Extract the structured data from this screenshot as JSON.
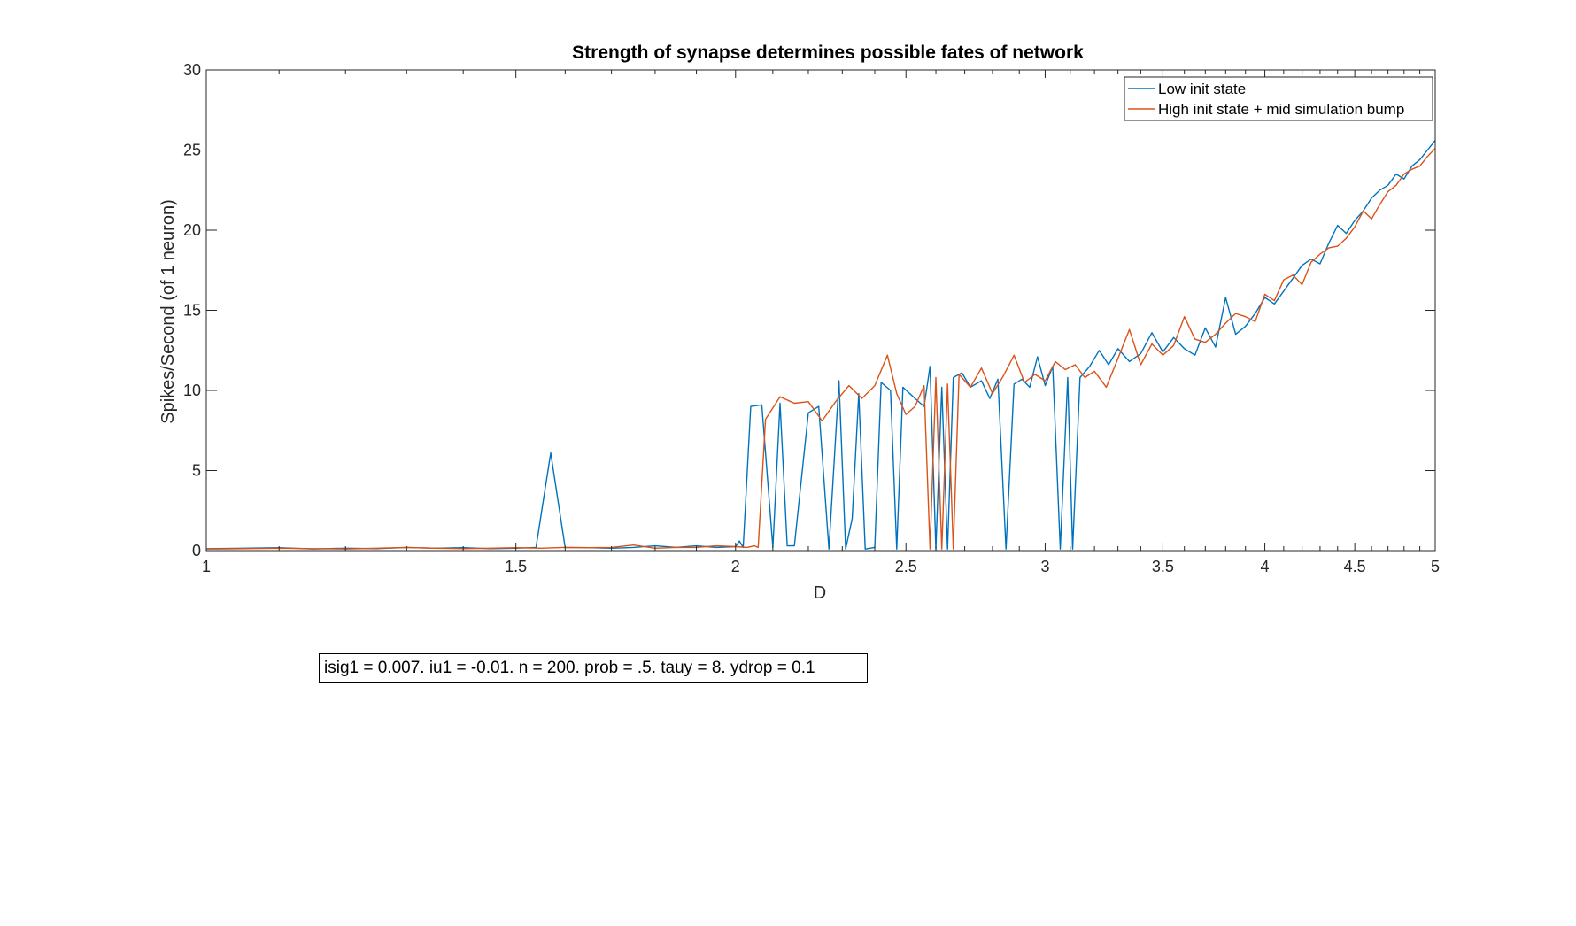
{
  "chart_data": {
    "type": "line",
    "title": "Strength of synapse determines possible fates of network",
    "xlabel": "D",
    "ylabel": "Spikes/Second (of 1 neuron)",
    "xscale": "log",
    "xlim": [
      1,
      5
    ],
    "ylim": [
      0,
      30
    ],
    "xticks": [
      1,
      1.5,
      2,
      2.5,
      3,
      3.5,
      4,
      4.5,
      5
    ],
    "xtick_labels": [
      "1",
      "1.5",
      "2",
      "2.5",
      "3",
      "3.5",
      "4",
      "4.5",
      "5"
    ],
    "yticks": [
      0,
      5,
      10,
      15,
      20,
      25,
      30
    ],
    "ytick_labels": [
      "0",
      "5",
      "10",
      "15",
      "20",
      "25",
      "30"
    ],
    "grid": false,
    "legend_position": "top-right",
    "series": [
      {
        "name": "Low init state",
        "color": "#0072BD",
        "points": [
          [
            1.0,
            0.12
          ],
          [
            1.05,
            0.15
          ],
          [
            1.1,
            0.18
          ],
          [
            1.15,
            0.1
          ],
          [
            1.2,
            0.15
          ],
          [
            1.25,
            0.12
          ],
          [
            1.3,
            0.2
          ],
          [
            1.35,
            0.15
          ],
          [
            1.4,
            0.18
          ],
          [
            1.45,
            0.12
          ],
          [
            1.5,
            0.15
          ],
          [
            1.54,
            0.2
          ],
          [
            1.57,
            6.1
          ],
          [
            1.6,
            0.2
          ],
          [
            1.65,
            0.18
          ],
          [
            1.7,
            0.15
          ],
          [
            1.75,
            0.2
          ],
          [
            1.8,
            0.3
          ],
          [
            1.85,
            0.2
          ],
          [
            1.9,
            0.3
          ],
          [
            1.95,
            0.2
          ],
          [
            2.0,
            0.25
          ],
          [
            2.01,
            0.6
          ],
          [
            2.02,
            0.2
          ],
          [
            2.04,
            9.0
          ],
          [
            2.07,
            9.1
          ],
          [
            2.1,
            0.2
          ],
          [
            2.12,
            9.2
          ],
          [
            2.14,
            0.3
          ],
          [
            2.16,
            0.3
          ],
          [
            2.2,
            8.6
          ],
          [
            2.23,
            9.0
          ],
          [
            2.26,
            0.1
          ],
          [
            2.29,
            10.6
          ],
          [
            2.31,
            0.1
          ],
          [
            2.33,
            2.0
          ],
          [
            2.35,
            9.8
          ],
          [
            2.37,
            0.1
          ],
          [
            2.4,
            0.2
          ],
          [
            2.42,
            10.5
          ],
          [
            2.45,
            10.0
          ],
          [
            2.47,
            0.1
          ],
          [
            2.49,
            10.2
          ],
          [
            2.53,
            9.5
          ],
          [
            2.56,
            9.0
          ],
          [
            2.58,
            11.5
          ],
          [
            2.6,
            0.1
          ],
          [
            2.62,
            10.2
          ],
          [
            2.64,
            0.1
          ],
          [
            2.66,
            10.8
          ],
          [
            2.69,
            11.1
          ],
          [
            2.72,
            10.2
          ],
          [
            2.76,
            10.6
          ],
          [
            2.79,
            9.5
          ],
          [
            2.82,
            10.7
          ],
          [
            2.85,
            0.1
          ],
          [
            2.88,
            10.4
          ],
          [
            2.91,
            10.7
          ],
          [
            2.94,
            10.2
          ],
          [
            2.97,
            12.1
          ],
          [
            3.0,
            10.3
          ],
          [
            3.03,
            11.5
          ],
          [
            3.06,
            0.1
          ],
          [
            3.09,
            10.8
          ],
          [
            3.11,
            0.1
          ],
          [
            3.14,
            10.8
          ],
          [
            3.18,
            11.5
          ],
          [
            3.22,
            12.5
          ],
          [
            3.26,
            11.6
          ],
          [
            3.3,
            12.6
          ],
          [
            3.35,
            11.8
          ],
          [
            3.4,
            12.3
          ],
          [
            3.45,
            13.6
          ],
          [
            3.5,
            12.4
          ],
          [
            3.55,
            13.3
          ],
          [
            3.6,
            12.6
          ],
          [
            3.65,
            12.2
          ],
          [
            3.7,
            13.9
          ],
          [
            3.75,
            12.7
          ],
          [
            3.8,
            15.8
          ],
          [
            3.85,
            13.5
          ],
          [
            3.9,
            14.0
          ],
          [
            3.95,
            14.8
          ],
          [
            4.0,
            15.8
          ],
          [
            4.05,
            15.4
          ],
          [
            4.1,
            16.2
          ],
          [
            4.15,
            17.0
          ],
          [
            4.2,
            17.8
          ],
          [
            4.25,
            18.2
          ],
          [
            4.3,
            17.9
          ],
          [
            4.35,
            19.2
          ],
          [
            4.4,
            20.3
          ],
          [
            4.45,
            19.8
          ],
          [
            4.5,
            20.6
          ],
          [
            4.55,
            21.2
          ],
          [
            4.6,
            22.0
          ],
          [
            4.65,
            22.5
          ],
          [
            4.7,
            22.8
          ],
          [
            4.75,
            23.5
          ],
          [
            4.8,
            23.2
          ],
          [
            4.85,
            24.0
          ],
          [
            4.9,
            24.4
          ],
          [
            4.95,
            25.0
          ],
          [
            5.0,
            25.6
          ]
        ]
      },
      {
        "name": "High init state + mid simulation bump",
        "color": "#D95319",
        "points": [
          [
            1.0,
            0.1
          ],
          [
            1.05,
            0.12
          ],
          [
            1.1,
            0.15
          ],
          [
            1.15,
            0.12
          ],
          [
            1.2,
            0.1
          ],
          [
            1.25,
            0.15
          ],
          [
            1.3,
            0.2
          ],
          [
            1.35,
            0.15
          ],
          [
            1.4,
            0.12
          ],
          [
            1.45,
            0.15
          ],
          [
            1.5,
            0.18
          ],
          [
            1.55,
            0.15
          ],
          [
            1.6,
            0.2
          ],
          [
            1.65,
            0.18
          ],
          [
            1.7,
            0.2
          ],
          [
            1.75,
            0.35
          ],
          [
            1.8,
            0.15
          ],
          [
            1.85,
            0.2
          ],
          [
            1.9,
            0.2
          ],
          [
            1.95,
            0.3
          ],
          [
            2.0,
            0.25
          ],
          [
            2.03,
            0.2
          ],
          [
            2.05,
            0.3
          ],
          [
            2.06,
            0.2
          ],
          [
            2.08,
            8.2
          ],
          [
            2.12,
            9.6
          ],
          [
            2.16,
            9.2
          ],
          [
            2.2,
            9.3
          ],
          [
            2.24,
            8.1
          ],
          [
            2.28,
            9.3
          ],
          [
            2.32,
            10.3
          ],
          [
            2.36,
            9.5
          ],
          [
            2.4,
            10.3
          ],
          [
            2.44,
            12.2
          ],
          [
            2.47,
            9.8
          ],
          [
            2.5,
            8.5
          ],
          [
            2.53,
            9.0
          ],
          [
            2.56,
            10.3
          ],
          [
            2.58,
            0.1
          ],
          [
            2.6,
            10.8
          ],
          [
            2.62,
            0.1
          ],
          [
            2.64,
            10.4
          ],
          [
            2.66,
            0.1
          ],
          [
            2.68,
            11.0
          ],
          [
            2.72,
            10.2
          ],
          [
            2.76,
            11.4
          ],
          [
            2.8,
            9.8
          ],
          [
            2.84,
            10.9
          ],
          [
            2.88,
            12.2
          ],
          [
            2.92,
            10.5
          ],
          [
            2.96,
            11.0
          ],
          [
            3.0,
            10.6
          ],
          [
            3.04,
            11.8
          ],
          [
            3.08,
            11.3
          ],
          [
            3.12,
            11.6
          ],
          [
            3.16,
            10.8
          ],
          [
            3.2,
            11.2
          ],
          [
            3.25,
            10.2
          ],
          [
            3.3,
            12.0
          ],
          [
            3.35,
            13.8
          ],
          [
            3.4,
            11.6
          ],
          [
            3.45,
            12.9
          ],
          [
            3.5,
            12.2
          ],
          [
            3.55,
            12.8
          ],
          [
            3.6,
            14.6
          ],
          [
            3.65,
            13.2
          ],
          [
            3.7,
            13.0
          ],
          [
            3.75,
            13.5
          ],
          [
            3.8,
            14.2
          ],
          [
            3.85,
            14.8
          ],
          [
            3.9,
            14.6
          ],
          [
            3.95,
            14.3
          ],
          [
            4.0,
            16.0
          ],
          [
            4.05,
            15.6
          ],
          [
            4.1,
            16.9
          ],
          [
            4.15,
            17.2
          ],
          [
            4.2,
            16.6
          ],
          [
            4.25,
            18.0
          ],
          [
            4.3,
            18.5
          ],
          [
            4.35,
            18.9
          ],
          [
            4.4,
            19.0
          ],
          [
            4.45,
            19.5
          ],
          [
            4.5,
            20.2
          ],
          [
            4.55,
            21.2
          ],
          [
            4.6,
            20.7
          ],
          [
            4.65,
            21.6
          ],
          [
            4.7,
            22.4
          ],
          [
            4.75,
            22.8
          ],
          [
            4.8,
            23.5
          ],
          [
            4.85,
            23.8
          ],
          [
            4.9,
            24.0
          ],
          [
            4.95,
            24.6
          ],
          [
            5.0,
            25.1
          ]
        ]
      }
    ]
  },
  "annotation": {
    "text": "isig1 = 0.007. iu1 = -0.01. n = 200. prob = .5. tauy = 8. ydrop = 0.1"
  }
}
